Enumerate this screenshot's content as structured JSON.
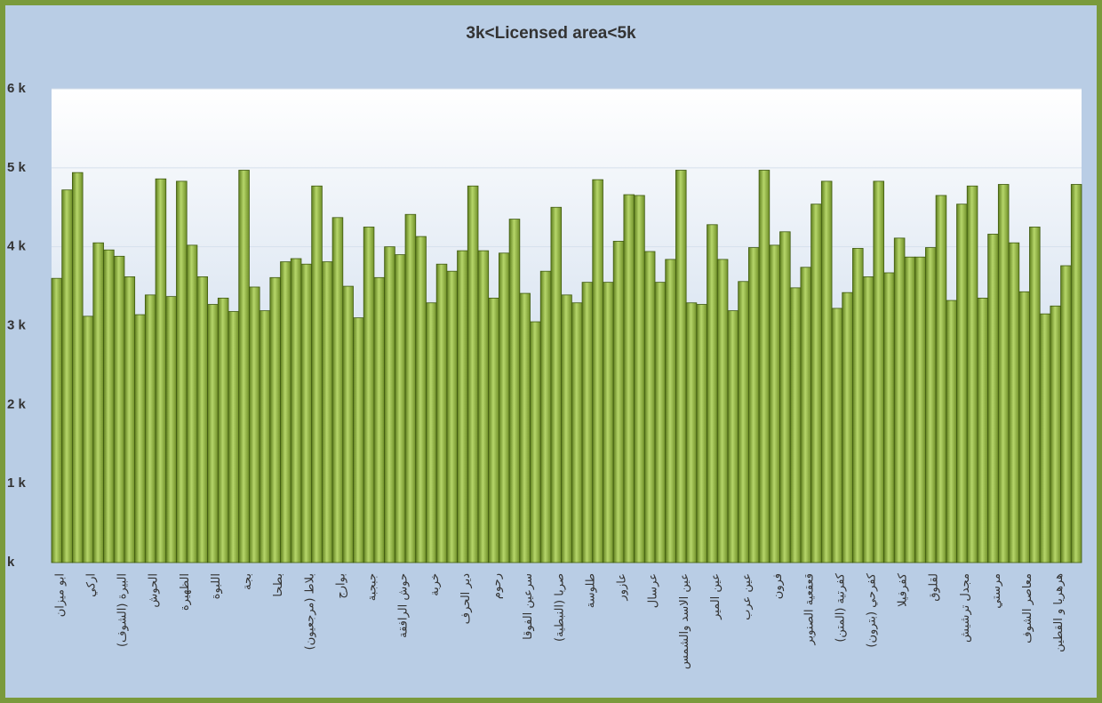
{
  "chart_data": {
    "type": "bar",
    "title": "3k<Licensed  area<5k",
    "categories": [
      "ابو ميزان",
      null,
      null,
      "اركي",
      null,
      null,
      "البيرة (الشوف)",
      null,
      null,
      "الحوش",
      null,
      null,
      "الظهيرة",
      null,
      null,
      "اللبوة",
      null,
      null,
      "بجة",
      null,
      null,
      "بطحا",
      null,
      null,
      "بلاط (مرجعيون)",
      null,
      null,
      "بوارج",
      null,
      null,
      "جبجبة",
      null,
      null,
      "حوش الرافقة",
      null,
      null,
      "خربة",
      null,
      null,
      "دير الحرف",
      null,
      null,
      "رحوم",
      null,
      null,
      "سرعين الفوقا",
      null,
      null,
      "صربا (النبطية)",
      null,
      null,
      "طلوسة",
      null,
      null,
      "عازور",
      null,
      null,
      "عرسال",
      null,
      null,
      "عين الاسد والشمس",
      null,
      null,
      "عين المير",
      null,
      null,
      "عين عرب",
      null,
      null,
      "فرون",
      null,
      null,
      "قعقعية الصنوبر",
      null,
      null,
      "كفرتية (المتن)",
      null,
      null,
      "كفرحي (بترون)",
      null,
      null,
      "كفرفيلا",
      null,
      null,
      "لقلوق",
      null,
      null,
      "مجدل ترشيش",
      null,
      null,
      "مرستي",
      null,
      null,
      "معاصر الشوف",
      null,
      null,
      "هرهريا و القطين",
      null,
      null
    ],
    "values": [
      3.6,
      4.72,
      4.94,
      3.12,
      4.05,
      3.96,
      3.88,
      3.62,
      3.14,
      3.39,
      4.86,
      3.37,
      4.83,
      4.02,
      3.62,
      3.27,
      3.35,
      3.18,
      4.97,
      3.49,
      3.19,
      3.61,
      3.81,
      3.85,
      3.78,
      4.77,
      3.81,
      4.37,
      3.5,
      3.1,
      4.25,
      3.61,
      4.0,
      3.9,
      4.41,
      4.13,
      3.29,
      3.78,
      3.69,
      3.95,
      4.77,
      3.95,
      3.35,
      3.92,
      4.35,
      3.41,
      3.05,
      3.69,
      4.5,
      3.39,
      3.29,
      3.55,
      4.85,
      3.55,
      4.07,
      4.66,
      4.65,
      3.94,
      3.55,
      3.84,
      4.97,
      3.29,
      3.27,
      4.28,
      3.84,
      3.19,
      3.56,
      3.99,
      4.97,
      4.02,
      4.19,
      3.48,
      3.74,
      4.54,
      4.83,
      3.22,
      3.42,
      3.98,
      3.62,
      4.83,
      3.67,
      4.11,
      3.87,
      3.87,
      3.99,
      4.65,
      3.32,
      4.54,
      4.77,
      3.35,
      4.16,
      4.79,
      4.05,
      3.43,
      4.25,
      3.15,
      3.25,
      3.76,
      4.79
    ],
    "color": "#8fb43a",
    "ylim": [
      0,
      6
    ],
    "yticks": [
      {
        "value": 0,
        "label": "k"
      },
      {
        "value": 1,
        "label": "1 k"
      },
      {
        "value": 2,
        "label": "2 k"
      },
      {
        "value": 3,
        "label": "3 k"
      },
      {
        "value": 4,
        "label": "4 k"
      },
      {
        "value": 5,
        "label": "5 k"
      },
      {
        "value": 6,
        "label": "6 k"
      }
    ],
    "grid": true
  }
}
